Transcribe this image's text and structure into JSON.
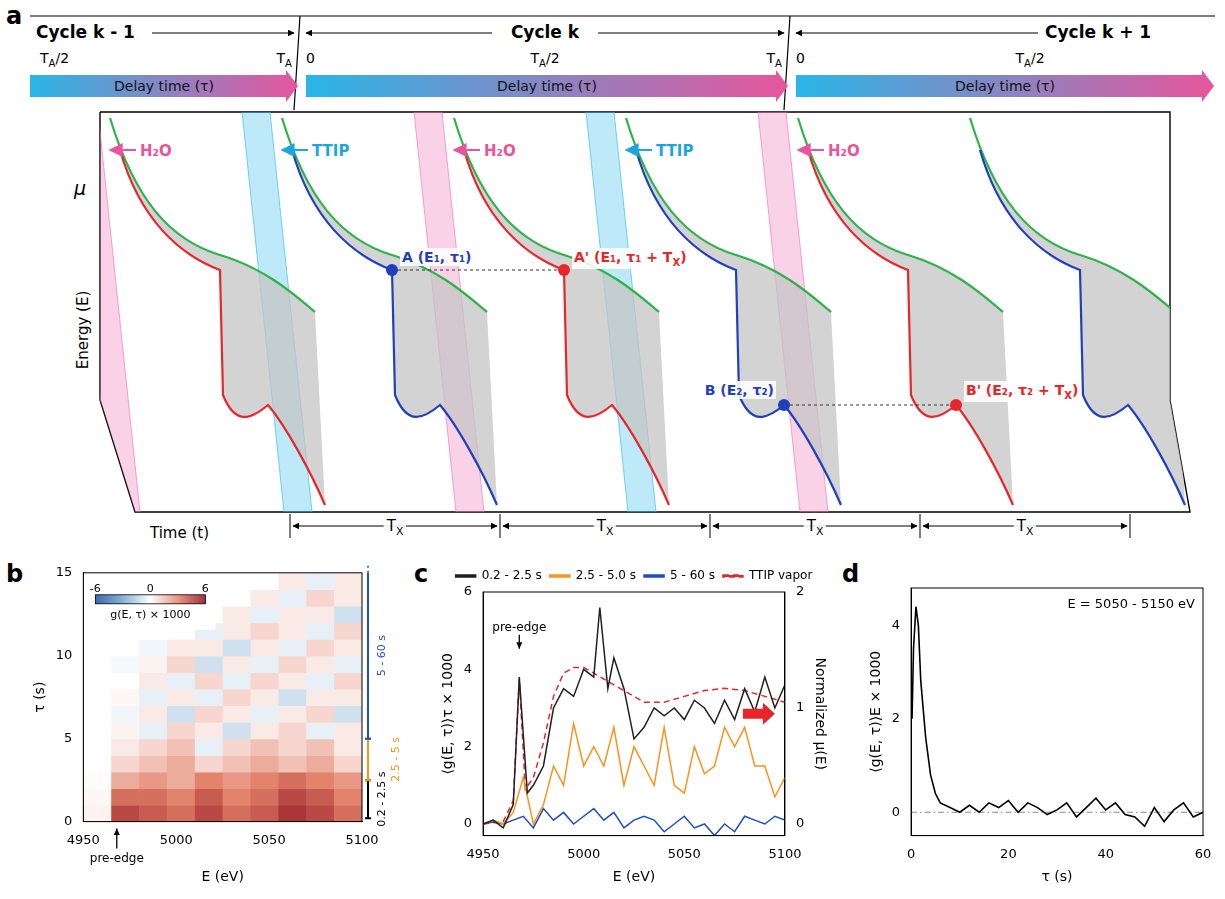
{
  "diagram": {
    "panel": "a",
    "cycles": [
      "Cycle k - 1",
      "Cycle k",
      "Cycle k + 1"
    ],
    "time_marks": [
      [
        {
          "t": "T"
        },
        {
          "sub": "A"
        },
        {
          "t": "/2"
        }
      ],
      [
        {
          "t": "T"
        },
        {
          "sub": "A"
        }
      ],
      [
        {
          "t": "0"
        }
      ],
      [
        {
          "t": "T"
        },
        {
          "sub": "A"
        },
        {
          "t": "/2"
        }
      ],
      [
        {
          "t": "T"
        },
        {
          "sub": "A"
        }
      ],
      [
        {
          "t": "0"
        }
      ],
      [
        {
          "t": "T"
        },
        {
          "sub": "A"
        },
        {
          "t": "/2"
        }
      ]
    ],
    "delay_labels": [
      "Delay time (τ)",
      "Delay time (τ)",
      "Delay time (τ)"
    ],
    "pulses": [
      "H₂O",
      "TTIP",
      "H₂O",
      "TTIP",
      "H₂O"
    ],
    "axes": {
      "vertical": "μ",
      "depth": "Energy (E)",
      "time": "Time (t)"
    },
    "points": [
      [
        {
          "t": "A (E₁, τ₁)"
        }
      ],
      [
        {
          "t": "A' (E₁, τ₁ + T"
        },
        {
          "sub": "X"
        },
        {
          "t": ")"
        }
      ],
      [
        {
          "t": "B (E₂, τ₂)"
        }
      ],
      [
        {
          "t": "B' (E₂, τ₂ + T"
        },
        {
          "sub": "X"
        },
        {
          "t": ")"
        }
      ]
    ],
    "period_labels": [
      [
        {
          "t": "T"
        },
        {
          "sub": "X"
        }
      ],
      [
        {
          "t": "T"
        },
        {
          "sub": "X"
        }
      ],
      [
        {
          "t": "T"
        },
        {
          "sub": "X"
        }
      ],
      [
        {
          "t": "T"
        },
        {
          "sub": "X"
        }
      ]
    ]
  },
  "chart_data": [
    {
      "panel": "b",
      "type": "heatmap",
      "x_label": "E (eV)",
      "y_label": "τ (s)",
      "xlim": [
        4950,
        5100
      ],
      "xticks": [
        4950,
        5000,
        5050,
        5100
      ],
      "ylim": [
        0,
        15
      ],
      "yticks": [
        0,
        5,
        10,
        15
      ],
      "grid": false,
      "x_bins": [
        4950,
        4965,
        4980,
        4995,
        5010,
        5025,
        5040,
        5055,
        5070,
        5085,
        5100
      ],
      "y_bins": [
        0,
        1,
        2,
        3,
        4,
        5,
        6,
        7,
        8,
        9,
        10,
        11,
        12,
        13,
        14,
        15
      ],
      "cells": [
        [
          0.3,
          4.5,
          4.0,
          3.5,
          4.5,
          3.5,
          4.0,
          5.0,
          4.5,
          3.5
        ],
        [
          0.2,
          3.5,
          3.5,
          3.0,
          4.0,
          3.0,
          3.5,
          4.5,
          4.0,
          3.0
        ],
        [
          0.1,
          2.0,
          2.5,
          2.0,
          3.0,
          2.5,
          3.0,
          3.5,
          3.0,
          2.5
        ],
        [
          0.0,
          1.0,
          1.5,
          2.0,
          1.0,
          1.5,
          2.0,
          1.5,
          2.0,
          1.0
        ],
        [
          0.0,
          0.5,
          1.0,
          1.5,
          -0.5,
          1.0,
          1.5,
          1.0,
          1.5,
          0.5
        ],
        [
          0.0,
          0.3,
          -0.5,
          1.0,
          0.5,
          -1.0,
          0.5,
          1.0,
          -0.5,
          0.5
        ],
        [
          0.0,
          -0.3,
          0.5,
          -1.0,
          1.0,
          0.5,
          -0.5,
          0.5,
          1.0,
          -1.0
        ],
        [
          0.0,
          0.2,
          -0.5,
          0.5,
          -0.5,
          1.0,
          0.5,
          -1.0,
          0.5,
          0.5
        ],
        [
          0.0,
          0.0,
          0.5,
          -0.5,
          1.0,
          -0.5,
          1.0,
          0.5,
          -0.5,
          1.0
        ],
        [
          0.0,
          -0.2,
          0.3,
          1.0,
          -1.0,
          0.5,
          -0.5,
          1.0,
          0.5,
          -0.5
        ],
        [
          0.0,
          0.0,
          -0.3,
          0.5,
          0.5,
          -1.0,
          0.5,
          -0.5,
          1.0,
          0.5
        ],
        [
          0.0,
          0.0,
          0.0,
          0.0,
          -0.5,
          0.5,
          1.0,
          0.5,
          -0.5,
          1.0
        ],
        [
          0.0,
          0.0,
          0.0,
          0.0,
          0.0,
          0.5,
          -0.5,
          0.5,
          0.5,
          -1.0
        ],
        [
          0.0,
          0.0,
          0.0,
          0.0,
          0.0,
          0.0,
          0.5,
          -0.5,
          1.0,
          0.5
        ],
        [
          0.0,
          0.0,
          0.0,
          0.0,
          0.0,
          0.0,
          0.0,
          0.5,
          -0.5,
          0.5
        ]
      ],
      "colorbar": {
        "label": "g(E, τ) × 1000",
        "range": [
          -6,
          6
        ],
        "ticks": [
          -6,
          0,
          6
        ]
      },
      "annotations": [
        {
          "text": "pre-edge",
          "x": 4968
        }
      ],
      "ranges": [
        {
          "label": "0.2 - 2.5 s",
          "from": 0.2,
          "to": 2.5,
          "color": "#000000"
        },
        {
          "label": "2.5 - 5 s",
          "from": 2.5,
          "to": 5,
          "color": "#f7941d"
        },
        {
          "label": "5 - 60 s",
          "from": 5,
          "to": 60,
          "color": "#1f4fbf"
        }
      ]
    },
    {
      "panel": "c",
      "type": "line",
      "x_label": "E (eV)",
      "y_label": "⟨g(E, τ)⟩τ × 1000",
      "y2_label": "Normalized μ(E)",
      "xlim": [
        4950,
        5100
      ],
      "xticks": [
        4950,
        5000,
        5050,
        5100
      ],
      "ylim": [
        -0.3,
        6
      ],
      "yticks": [
        0,
        2,
        4,
        6
      ],
      "y2lim": [
        -0.1,
        2
      ],
      "y2ticks": [
        0,
        1,
        2
      ],
      "legend": "top",
      "grid": false,
      "series": [
        {
          "name": "0.2 - 2.5 s",
          "color": "#231f20",
          "x": [
            4950,
            4955,
            4960,
            4965,
            4968,
            4972,
            4975,
            4980,
            4985,
            4990,
            4995,
            5000,
            5005,
            5008,
            5012,
            5015,
            5020,
            5025,
            5030,
            5035,
            5040,
            5045,
            5050,
            5055,
            5060,
            5065,
            5070,
            5075,
            5080,
            5085,
            5090,
            5095,
            5100
          ],
          "values": [
            0,
            0.1,
            -0.1,
            0.5,
            3.8,
            0.8,
            1.0,
            1.5,
            3.0,
            3.5,
            3.3,
            4.0,
            3.8,
            5.6,
            3.5,
            4.3,
            3.5,
            2.2,
            2.5,
            3.0,
            2.8,
            3.0,
            2.7,
            3.2,
            3.0,
            2.6,
            3.2,
            2.7,
            3.5,
            2.9,
            3.8,
            3.0,
            3.6
          ]
        },
        {
          "name": "2.5 - 5.0 s",
          "color": "#f7941d",
          "x": [
            4950,
            4955,
            4960,
            4965,
            4970,
            4975,
            4980,
            4985,
            4990,
            4995,
            5000,
            5005,
            5010,
            5015,
            5020,
            5025,
            5030,
            5035,
            5040,
            5045,
            5050,
            5055,
            5060,
            5065,
            5070,
            5075,
            5080,
            5085,
            5090,
            5095,
            5100
          ],
          "values": [
            0,
            0.1,
            0,
            0.3,
            1.2,
            0,
            0.5,
            1.5,
            1.0,
            2.6,
            1.5,
            2.0,
            1.5,
            2.5,
            1.0,
            2.0,
            1.5,
            1.0,
            2.5,
            1.0,
            0.8,
            2.0,
            1.3,
            1.5,
            2.5,
            2.0,
            2.5,
            1.5,
            1.5,
            0.7,
            1.2
          ]
        },
        {
          "name": "5 - 60 s",
          "color": "#1f4fbf",
          "x": [
            4950,
            4955,
            4960,
            4965,
            4970,
            4975,
            4980,
            4985,
            4990,
            4995,
            5000,
            5005,
            5010,
            5015,
            5020,
            5025,
            5030,
            5035,
            5040,
            5045,
            5050,
            5055,
            5060,
            5065,
            5070,
            5075,
            5080,
            5085,
            5090,
            5095,
            5100
          ],
          "values": [
            0,
            0.05,
            0,
            0.1,
            0.2,
            -0.1,
            0.4,
            0.1,
            0.3,
            0,
            0.2,
            0.4,
            0.1,
            0.3,
            -0.1,
            0.1,
            0.2,
            0.1,
            -0.2,
            0,
            0.2,
            -0.1,
            0,
            -0.3,
            0,
            -0.2,
            0.2,
            0.1,
            0,
            0.2,
            0.1
          ]
        },
        {
          "name": "TTIP vapor",
          "color": "#e8262a",
          "line_style": "dashed",
          "axis": "y2",
          "x": [
            4950,
            4960,
            4965,
            4968,
            4971,
            4975,
            4980,
            4985,
            4990,
            4995,
            5000,
            5005,
            5010,
            5020,
            5030,
            5040,
            5050,
            5060,
            5070,
            5080,
            5090,
            5100
          ],
          "values": [
            0,
            0.02,
            0.2,
            1.25,
            0.3,
            0.4,
            0.7,
            1.1,
            1.3,
            1.35,
            1.35,
            1.3,
            1.25,
            1.15,
            1.05,
            1.05,
            1.1,
            1.15,
            1.17,
            1.15,
            1.1,
            1.05
          ]
        }
      ],
      "annotations": [
        {
          "text": "pre-edge",
          "x": 4968,
          "y": 5.0
        }
      ]
    },
    {
      "panel": "d",
      "type": "line",
      "x_label": "τ (s)",
      "y_label": "⟨g(E, τ)⟩E × 1000",
      "xlim": [
        0,
        60
      ],
      "xticks": [
        0,
        20,
        40,
        60
      ],
      "ylim": [
        -0.5,
        4.8
      ],
      "yticks": [
        0,
        2,
        4
      ],
      "grid": false,
      "color": "#000000",
      "x": [
        0.2,
        0.5,
        1,
        1.5,
        2,
        3,
        4,
        5,
        6,
        8,
        10,
        12,
        14,
        16,
        18,
        20,
        22,
        24,
        26,
        28,
        30,
        32,
        34,
        36,
        38,
        40,
        42,
        44,
        46,
        48,
        50,
        52,
        54,
        56,
        58,
        60
      ],
      "values": [
        2.0,
        3.5,
        4.4,
        4.0,
        2.8,
        1.6,
        0.8,
        0.4,
        0.2,
        0.1,
        0.0,
        0.15,
        0.0,
        0.2,
        0.1,
        0.25,
        0.0,
        0.2,
        0.1,
        -0.05,
        0.05,
        0.2,
        -0.1,
        0.1,
        0.3,
        0.05,
        0.2,
        -0.05,
        -0.1,
        -0.3,
        0.1,
        -0.2,
        0.05,
        0.2,
        -0.1,
        0.0
      ],
      "reference_y": 0,
      "annotations": [
        {
          "text": "E = 5050 - 5150 eV"
        }
      ]
    }
  ]
}
